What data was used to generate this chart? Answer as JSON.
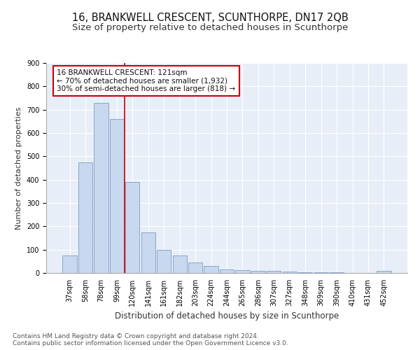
{
  "title": "16, BRANKWELL CRESCENT, SCUNTHORPE, DN17 2QB",
  "subtitle": "Size of property relative to detached houses in Scunthorpe",
  "xlabel": "Distribution of detached houses by size in Scunthorpe",
  "ylabel": "Number of detached properties",
  "categories": [
    "37sqm",
    "58sqm",
    "78sqm",
    "99sqm",
    "120sqm",
    "141sqm",
    "161sqm",
    "182sqm",
    "203sqm",
    "224sqm",
    "244sqm",
    "265sqm",
    "286sqm",
    "307sqm",
    "327sqm",
    "348sqm",
    "369sqm",
    "390sqm",
    "410sqm",
    "431sqm",
    "452sqm"
  ],
  "values": [
    75,
    475,
    730,
    660,
    390,
    175,
    100,
    75,
    45,
    30,
    15,
    12,
    10,
    8,
    5,
    4,
    3,
    2,
    1,
    1,
    8
  ],
  "bar_color": "#c8d8ee",
  "bar_edge_color": "#7a9cc8",
  "vline_x": 4.0,
  "vline_color": "#cc0000",
  "annotation_text": "16 BRANKWELL CRESCENT: 121sqm\n← 70% of detached houses are smaller (1,932)\n30% of semi-detached houses are larger (818) →",
  "annotation_box_color": "#ffffff",
  "annotation_box_edge_color": "#cc0000",
  "ylim": [
    0,
    900
  ],
  "yticks": [
    0,
    100,
    200,
    300,
    400,
    500,
    600,
    700,
    800,
    900
  ],
  "background_color": "#e8eef8",
  "grid_color": "#ffffff",
  "footer": "Contains HM Land Registry data © Crown copyright and database right 2024.\nContains public sector information licensed under the Open Government Licence v3.0.",
  "title_fontsize": 10.5,
  "subtitle_fontsize": 9.5,
  "xlabel_fontsize": 8.5,
  "ylabel_fontsize": 8,
  "tick_fontsize": 7,
  "annotation_fontsize": 7.5,
  "footer_fontsize": 6.5
}
